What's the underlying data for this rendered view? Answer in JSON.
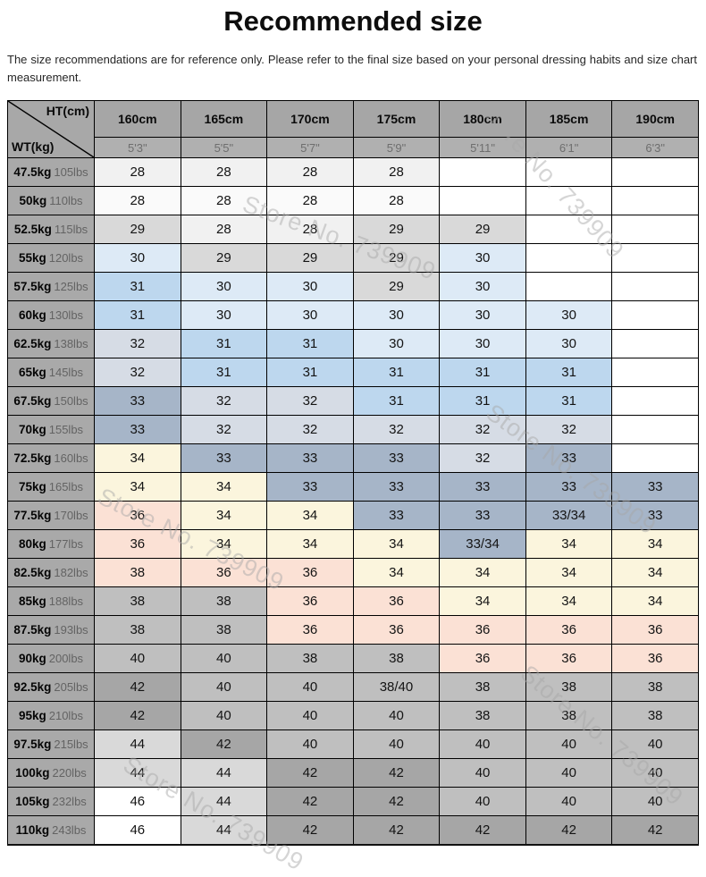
{
  "page": {
    "title": "Recommended size",
    "disclaimer": "The size recommendations are for reference only. Please refer to the final size based on your personal dressing habits and size chart measurement."
  },
  "watermark": {
    "text": "Store No. 739909"
  },
  "chart_data": {
    "type": "table",
    "title": "Recommended size",
    "corner": {
      "top_label": "HT(cm)",
      "bottom_label": "WT(kg)"
    },
    "height_columns_cm": [
      "160cm",
      "165cm",
      "170cm",
      "175cm",
      "180cm",
      "185cm",
      "190cm"
    ],
    "height_columns_ft": [
      "5'3\"",
      "5'5\"",
      "5'7\"",
      "5'9\"",
      "5'11\"",
      "6'1\"",
      "6'3\""
    ],
    "cell_colors": {
      "w": "#ffffff",
      "g1": "#fafafa",
      "g2": "#f1f1f1",
      "g3": "#d9d9d9",
      "g4": "#bfbfbf",
      "g5": "#a6a6a6",
      "b1": "#ddeaf6",
      "b2": "#bdd7ee",
      "s1": "#d6dce5",
      "s2": "#a6b5c8",
      "c": "#fbf5dd",
      "p": "#fbe1d5"
    },
    "weight_rows": [
      {
        "kg": "47.5kg",
        "lbs": "105lbs",
        "sizes": [
          [
            "28",
            "g2"
          ],
          [
            "28",
            "g2"
          ],
          [
            "28",
            "g2"
          ],
          [
            "28",
            "g2"
          ],
          [
            "",
            "w"
          ],
          [
            "",
            "w"
          ],
          [
            "",
            "w"
          ]
        ]
      },
      {
        "kg": "50kg",
        "lbs": "110lbs",
        "sizes": [
          [
            "28",
            "g1"
          ],
          [
            "28",
            "g1"
          ],
          [
            "28",
            "g1"
          ],
          [
            "28",
            "g1"
          ],
          [
            "",
            "w"
          ],
          [
            "",
            "w"
          ],
          [
            "",
            "w"
          ]
        ]
      },
      {
        "kg": "52.5kg",
        "lbs": "115lbs",
        "sizes": [
          [
            "29",
            "g3"
          ],
          [
            "28",
            "g2"
          ],
          [
            "28",
            "g2"
          ],
          [
            "29",
            "g3"
          ],
          [
            "29",
            "g3"
          ],
          [
            "",
            "w"
          ],
          [
            "",
            "w"
          ]
        ]
      },
      {
        "kg": "55kg",
        "lbs": "120lbs",
        "sizes": [
          [
            "30",
            "b1"
          ],
          [
            "29",
            "g3"
          ],
          [
            "29",
            "g3"
          ],
          [
            "29",
            "g3"
          ],
          [
            "30",
            "b1"
          ],
          [
            "",
            "w"
          ],
          [
            "",
            "w"
          ]
        ]
      },
      {
        "kg": "57.5kg",
        "lbs": "125lbs",
        "sizes": [
          [
            "31",
            "b2"
          ],
          [
            "30",
            "b1"
          ],
          [
            "30",
            "b1"
          ],
          [
            "29",
            "g3"
          ],
          [
            "30",
            "b1"
          ],
          [
            "",
            "w"
          ],
          [
            "",
            "w"
          ]
        ]
      },
      {
        "kg": "60kg",
        "lbs": "130lbs",
        "sizes": [
          [
            "31",
            "b2"
          ],
          [
            "30",
            "b1"
          ],
          [
            "30",
            "b1"
          ],
          [
            "30",
            "b1"
          ],
          [
            "30",
            "b1"
          ],
          [
            "30",
            "b1"
          ],
          [
            "",
            "w"
          ]
        ]
      },
      {
        "kg": "62.5kg",
        "lbs": "138lbs",
        "sizes": [
          [
            "32",
            "s1"
          ],
          [
            "31",
            "b2"
          ],
          [
            "31",
            "b2"
          ],
          [
            "30",
            "b1"
          ],
          [
            "30",
            "b1"
          ],
          [
            "30",
            "b1"
          ],
          [
            "",
            "w"
          ]
        ]
      },
      {
        "kg": "65kg",
        "lbs": "145lbs",
        "sizes": [
          [
            "32",
            "s1"
          ],
          [
            "31",
            "b2"
          ],
          [
            "31",
            "b2"
          ],
          [
            "31",
            "b2"
          ],
          [
            "31",
            "b2"
          ],
          [
            "31",
            "b2"
          ],
          [
            "",
            "w"
          ]
        ]
      },
      {
        "kg": "67.5kg",
        "lbs": "150lbs",
        "sizes": [
          [
            "33",
            "s2"
          ],
          [
            "32",
            "s1"
          ],
          [
            "32",
            "s1"
          ],
          [
            "31",
            "b2"
          ],
          [
            "31",
            "b2"
          ],
          [
            "31",
            "b2"
          ],
          [
            "",
            "w"
          ]
        ]
      },
      {
        "kg": "70kg",
        "lbs": "155lbs",
        "sizes": [
          [
            "33",
            "s2"
          ],
          [
            "32",
            "s1"
          ],
          [
            "32",
            "s1"
          ],
          [
            "32",
            "s1"
          ],
          [
            "32",
            "s1"
          ],
          [
            "32",
            "s1"
          ],
          [
            "",
            "w"
          ]
        ]
      },
      {
        "kg": "72.5kg",
        "lbs": "160lbs",
        "sizes": [
          [
            "34",
            "c"
          ],
          [
            "33",
            "s2"
          ],
          [
            "33",
            "s2"
          ],
          [
            "33",
            "s2"
          ],
          [
            "32",
            "s1"
          ],
          [
            "33",
            "s2"
          ],
          [
            "",
            "w"
          ]
        ]
      },
      {
        "kg": "75kg",
        "lbs": "165lbs",
        "sizes": [
          [
            "34",
            "c"
          ],
          [
            "34",
            "c"
          ],
          [
            "33",
            "s2"
          ],
          [
            "33",
            "s2"
          ],
          [
            "33",
            "s2"
          ],
          [
            "33",
            "s2"
          ],
          [
            "33",
            "s2"
          ]
        ]
      },
      {
        "kg": "77.5kg",
        "lbs": "170lbs",
        "sizes": [
          [
            "36",
            "p"
          ],
          [
            "34",
            "c"
          ],
          [
            "34",
            "c"
          ],
          [
            "33",
            "s2"
          ],
          [
            "33",
            "s2"
          ],
          [
            "33/34",
            "s2"
          ],
          [
            "33",
            "s2"
          ]
        ]
      },
      {
        "kg": "80kg",
        "lbs": "177lbs",
        "sizes": [
          [
            "36",
            "p"
          ],
          [
            "34",
            "c"
          ],
          [
            "34",
            "c"
          ],
          [
            "34",
            "c"
          ],
          [
            "33/34",
            "s2"
          ],
          [
            "34",
            "c"
          ],
          [
            "34",
            "c"
          ]
        ]
      },
      {
        "kg": "82.5kg",
        "lbs": "182lbs",
        "sizes": [
          [
            "38",
            "p"
          ],
          [
            "36",
            "p"
          ],
          [
            "36",
            "p"
          ],
          [
            "34",
            "c"
          ],
          [
            "34",
            "c"
          ],
          [
            "34",
            "c"
          ],
          [
            "34",
            "c"
          ]
        ]
      },
      {
        "kg": "85kg",
        "lbs": "188lbs",
        "sizes": [
          [
            "38",
            "g4"
          ],
          [
            "38",
            "g4"
          ],
          [
            "36",
            "p"
          ],
          [
            "36",
            "p"
          ],
          [
            "34",
            "c"
          ],
          [
            "34",
            "c"
          ],
          [
            "34",
            "c"
          ]
        ]
      },
      {
        "kg": "87.5kg",
        "lbs": "193lbs",
        "sizes": [
          [
            "38",
            "g4"
          ],
          [
            "38",
            "g4"
          ],
          [
            "36",
            "p"
          ],
          [
            "36",
            "p"
          ],
          [
            "36",
            "p"
          ],
          [
            "36",
            "p"
          ],
          [
            "36",
            "p"
          ]
        ]
      },
      {
        "kg": "90kg",
        "lbs": "200lbs",
        "sizes": [
          [
            "40",
            "g4"
          ],
          [
            "40",
            "g4"
          ],
          [
            "38",
            "g4"
          ],
          [
            "38",
            "g4"
          ],
          [
            "36",
            "p"
          ],
          [
            "36",
            "p"
          ],
          [
            "36",
            "p"
          ]
        ]
      },
      {
        "kg": "92.5kg",
        "lbs": "205lbs",
        "sizes": [
          [
            "42",
            "g5"
          ],
          [
            "40",
            "g4"
          ],
          [
            "40",
            "g4"
          ],
          [
            "38/40",
            "g4"
          ],
          [
            "38",
            "g4"
          ],
          [
            "38",
            "g4"
          ],
          [
            "38",
            "g4"
          ]
        ]
      },
      {
        "kg": "95kg",
        "lbs": "210lbs",
        "sizes": [
          [
            "42",
            "g5"
          ],
          [
            "40",
            "g4"
          ],
          [
            "40",
            "g4"
          ],
          [
            "40",
            "g4"
          ],
          [
            "38",
            "g4"
          ],
          [
            "38",
            "g4"
          ],
          [
            "38",
            "g4"
          ]
        ]
      },
      {
        "kg": "97.5kg",
        "lbs": "215lbs",
        "sizes": [
          [
            "44",
            "g3"
          ],
          [
            "42",
            "g5"
          ],
          [
            "40",
            "g4"
          ],
          [
            "40",
            "g4"
          ],
          [
            "40",
            "g4"
          ],
          [
            "40",
            "g4"
          ],
          [
            "40",
            "g4"
          ]
        ]
      },
      {
        "kg": "100kg",
        "lbs": "220lbs",
        "sizes": [
          [
            "44",
            "g3"
          ],
          [
            "44",
            "g3"
          ],
          [
            "42",
            "g5"
          ],
          [
            "42",
            "g5"
          ],
          [
            "40",
            "g4"
          ],
          [
            "40",
            "g4"
          ],
          [
            "40",
            "g4"
          ]
        ]
      },
      {
        "kg": "105kg",
        "lbs": "232lbs",
        "sizes": [
          [
            "46",
            "w"
          ],
          [
            "44",
            "g3"
          ],
          [
            "42",
            "g5"
          ],
          [
            "42",
            "g5"
          ],
          [
            "40",
            "g4"
          ],
          [
            "40",
            "g4"
          ],
          [
            "40",
            "g4"
          ]
        ]
      },
      {
        "kg": "110kg",
        "lbs": "243lbs",
        "sizes": [
          [
            "46",
            "w"
          ],
          [
            "44",
            "g3"
          ],
          [
            "42",
            "g5"
          ],
          [
            "42",
            "g5"
          ],
          [
            "42",
            "g5"
          ],
          [
            "42",
            "g5"
          ],
          [
            "42",
            "g5"
          ]
        ]
      }
    ]
  }
}
